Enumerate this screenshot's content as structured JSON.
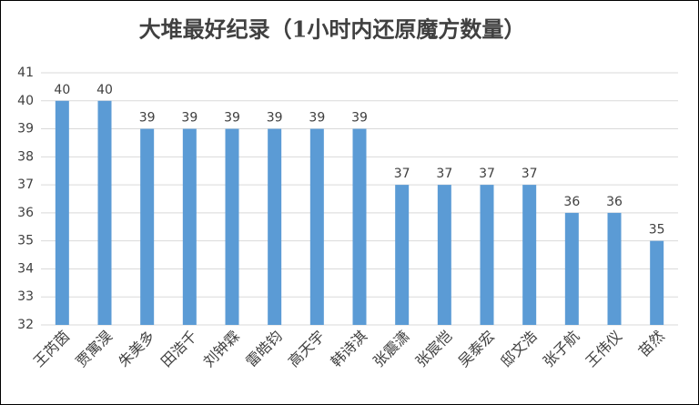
{
  "chart_data": {
    "type": "bar",
    "title": "大堆最好纪录（1小时内还原魔方数量）",
    "categories": [
      "王芮茵",
      "贾寓淏",
      "朱美多",
      "田浩千",
      "刘钟霖",
      "雷皓钧",
      "高天宇",
      "韩诗淇",
      "张震潇",
      "张宸恺",
      "吴泰宏",
      "邸文浩",
      "张子航",
      "王伟仪",
      "苗然"
    ],
    "values": [
      40,
      40,
      39,
      39,
      39,
      39,
      39,
      39,
      37,
      37,
      37,
      37,
      36,
      36,
      35
    ],
    "color": "#5b9bd5",
    "ylim": [
      32,
      41
    ],
    "yticks": [
      32,
      33,
      34,
      35,
      36,
      37,
      38,
      39,
      40,
      41
    ],
    "grid": true
  }
}
